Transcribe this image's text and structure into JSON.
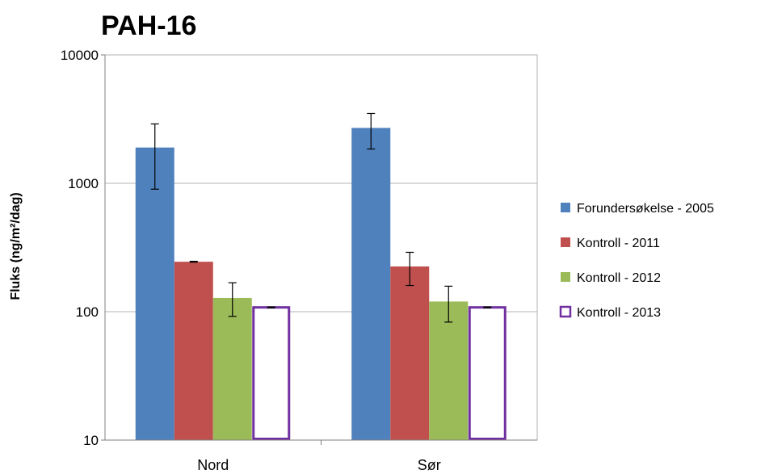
{
  "chart_data": {
    "type": "bar",
    "title": "PAH-16",
    "xlabel": "",
    "ylabel": "Fluks (ng/m²/dag)",
    "yscale": "log",
    "ylim": [
      10,
      10000
    ],
    "yticks": [
      "10",
      "100",
      "1000",
      "10000"
    ],
    "grid": true,
    "legend_position": "right",
    "categories": [
      "Nord",
      "Sør"
    ],
    "series": [
      {
        "name": "Forundersøkelse - 2005",
        "color": "#4f81bd",
        "fill": "solid",
        "values": [
          1900,
          2700
        ],
        "error_low": [
          900,
          1850
        ],
        "error_high": [
          2900,
          3500
        ]
      },
      {
        "name": "Kontroll - 2011",
        "color": "#c0504d",
        "fill": "solid",
        "values": [
          245,
          225
        ],
        "error_low": [
          243,
          160
        ],
        "error_high": [
          247,
          290
        ]
      },
      {
        "name": "Kontroll - 2012",
        "color": "#9bbb59",
        "fill": "solid",
        "values": [
          128,
          120
        ],
        "error_low": [
          92,
          83
        ],
        "error_high": [
          168,
          158
        ]
      },
      {
        "name": "Kontroll - 2013",
        "color": "#7030a0",
        "fill": "outline",
        "values": [
          108,
          108
        ],
        "error_low": [
          107,
          107
        ],
        "error_high": [
          109,
          109
        ]
      }
    ]
  }
}
